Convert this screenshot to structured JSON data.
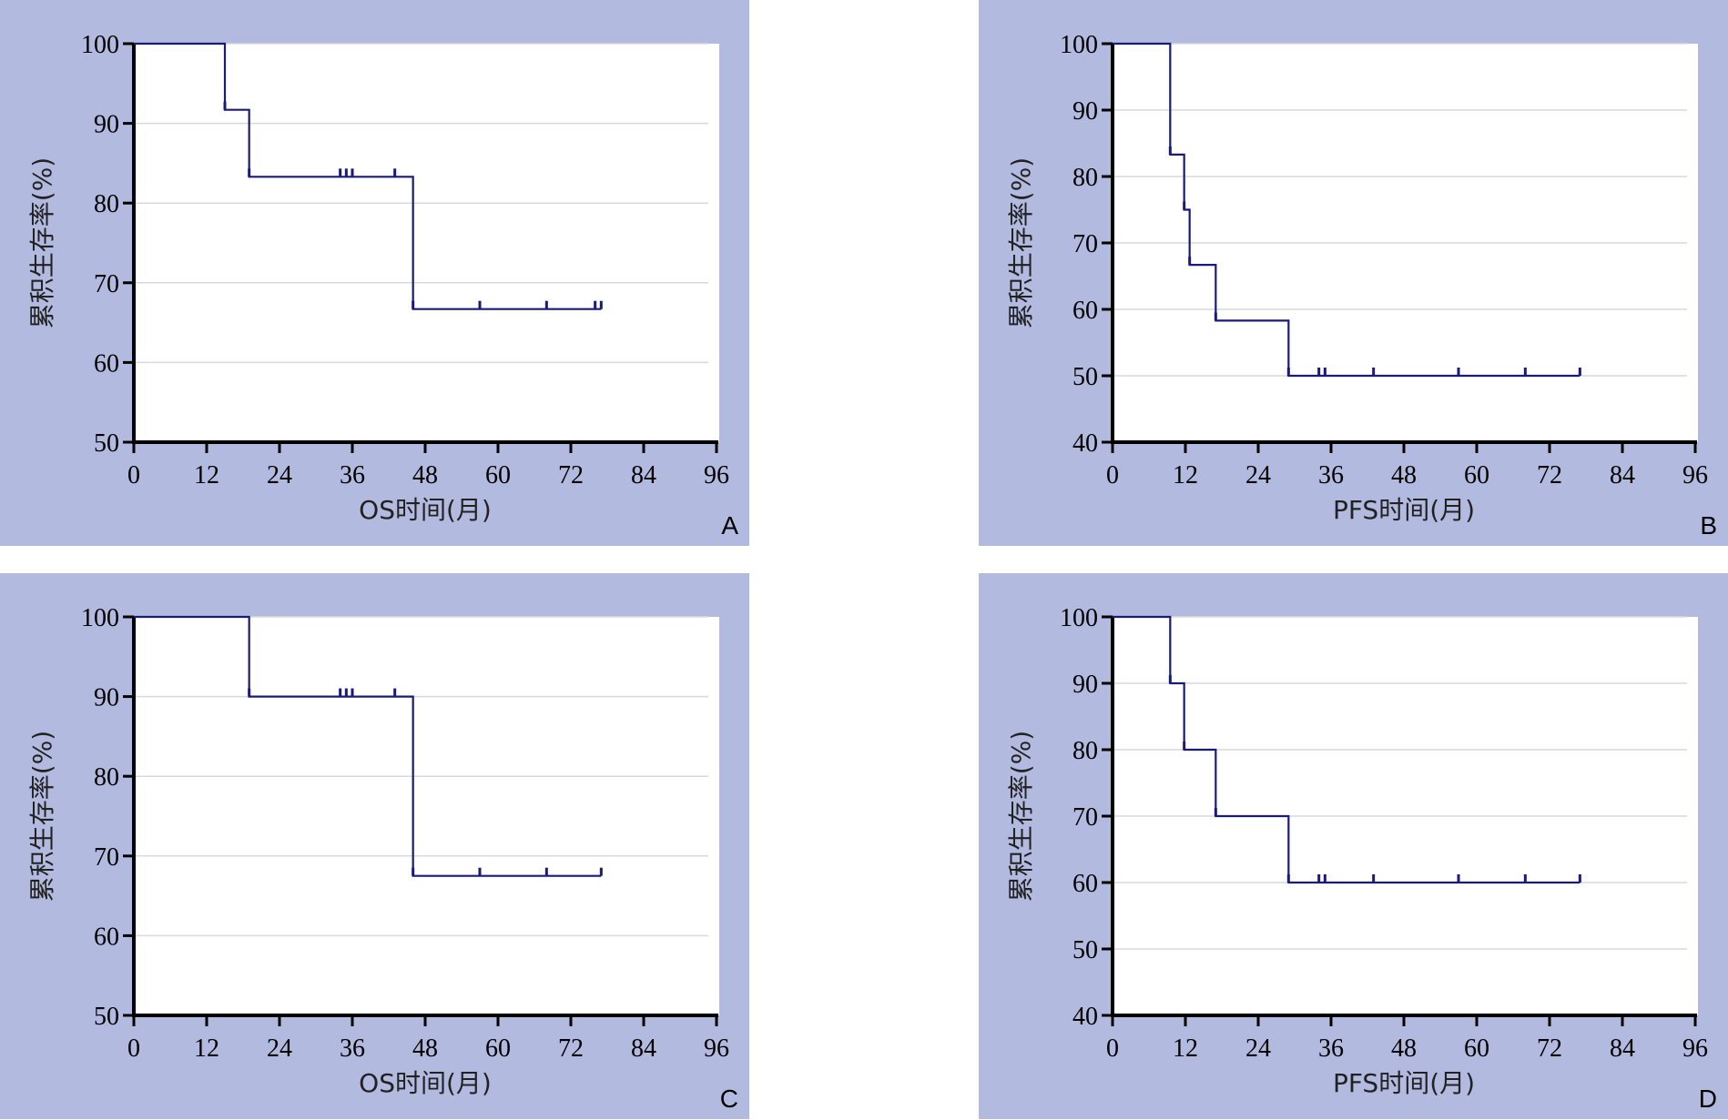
{
  "figure": {
    "panels": [
      {
        "letter": "A"
      },
      {
        "letter": "B"
      },
      {
        "letter": "C"
      },
      {
        "letter": "D"
      }
    ]
  },
  "colors": {
    "panel_background": "#b2badf",
    "plot_background": "#ffffff",
    "curve": "#1a1a7a",
    "gridline": "#d9d9d9"
  },
  "chart_data": [
    {
      "type": "line",
      "subtype": "kaplan-meier step",
      "panel": "A",
      "xlabel": "OS时间(月)",
      "ylabel": "累积生存率(%)",
      "xlim": [
        0,
        96
      ],
      "ylim": [
        50,
        100
      ],
      "xticks": [
        0,
        12,
        24,
        36,
        48,
        60,
        72,
        84,
        96
      ],
      "yticks": [
        50,
        60,
        70,
        80,
        90,
        100
      ],
      "grid": true,
      "series": [
        {
          "steps": [
            [
              0,
              100
            ],
            [
              15,
              91.7
            ],
            [
              19,
              83.3
            ],
            [
              46,
              66.7
            ],
            [
              77,
              66.7
            ]
          ],
          "censored": [
            [
              15,
              91.7
            ],
            [
              19,
              83.3
            ],
            [
              34,
              83.3
            ],
            [
              35,
              83.3
            ],
            [
              36,
              83.3
            ],
            [
              43,
              83.3
            ],
            [
              46,
              66.7
            ],
            [
              57,
              66.7
            ],
            [
              68,
              66.7
            ],
            [
              76,
              66.7
            ],
            [
              77,
              66.7
            ]
          ]
        }
      ]
    },
    {
      "type": "line",
      "subtype": "kaplan-meier step",
      "panel": "B",
      "xlabel": "PFS时间(月)",
      "ylabel": "累积生存率(%)",
      "xlim": [
        0,
        96
      ],
      "ylim": [
        40,
        100
      ],
      "xticks": [
        0,
        12,
        24,
        36,
        48,
        60,
        72,
        84,
        96
      ],
      "yticks": [
        40,
        50,
        60,
        70,
        80,
        90,
        100
      ],
      "grid": true,
      "series": [
        {
          "steps": [
            [
              0,
              100
            ],
            [
              9.5,
              83.3
            ],
            [
              11.8,
              75
            ],
            [
              12.7,
              66.7
            ],
            [
              17,
              58.3
            ],
            [
              29,
              50
            ],
            [
              77,
              50
            ]
          ],
          "censored": [
            [
              9.5,
              83.3
            ],
            [
              11.8,
              75
            ],
            [
              12.7,
              66.7
            ],
            [
              17,
              58.3
            ],
            [
              29,
              50
            ],
            [
              34,
              50
            ],
            [
              35,
              50
            ],
            [
              43,
              50
            ],
            [
              57,
              50
            ],
            [
              68,
              50
            ],
            [
              77,
              50
            ]
          ]
        }
      ]
    },
    {
      "type": "line",
      "subtype": "kaplan-meier step",
      "panel": "C",
      "xlabel": "OS时间(月)",
      "ylabel": "累积生存率(%)",
      "xlim": [
        0,
        96
      ],
      "ylim": [
        50,
        100
      ],
      "xticks": [
        0,
        12,
        24,
        36,
        48,
        60,
        72,
        84,
        96
      ],
      "yticks": [
        50,
        60,
        70,
        80,
        90,
        100
      ],
      "grid": true,
      "series": [
        {
          "steps": [
            [
              0,
              100
            ],
            [
              19,
              90
            ],
            [
              46,
              67.5
            ],
            [
              77,
              67.5
            ]
          ],
          "censored": [
            [
              19,
              90
            ],
            [
              34,
              90
            ],
            [
              35,
              90
            ],
            [
              36,
              90
            ],
            [
              43,
              90
            ],
            [
              46,
              67.5
            ],
            [
              57,
              67.5
            ],
            [
              68,
              67.5
            ],
            [
              77,
              67.5
            ]
          ]
        }
      ]
    },
    {
      "type": "line",
      "subtype": "kaplan-meier step",
      "panel": "D",
      "xlabel": "PFS时间(月)",
      "ylabel": "累积生存率(%)",
      "xlim": [
        0,
        96
      ],
      "ylim": [
        40,
        100
      ],
      "xticks": [
        0,
        12,
        24,
        36,
        48,
        60,
        72,
        84,
        96
      ],
      "yticks": [
        40,
        50,
        60,
        70,
        80,
        90,
        100
      ],
      "grid": true,
      "series": [
        {
          "steps": [
            [
              0,
              100
            ],
            [
              9.5,
              90
            ],
            [
              11.8,
              80
            ],
            [
              17,
              70
            ],
            [
              29,
              60
            ],
            [
              77,
              60
            ]
          ],
          "censored": [
            [
              9.5,
              90
            ],
            [
              11.8,
              80
            ],
            [
              17,
              70
            ],
            [
              29,
              60
            ],
            [
              34,
              60
            ],
            [
              35,
              60
            ],
            [
              43,
              60
            ],
            [
              57,
              60
            ],
            [
              68,
              60
            ],
            [
              77,
              60
            ]
          ]
        }
      ]
    }
  ]
}
